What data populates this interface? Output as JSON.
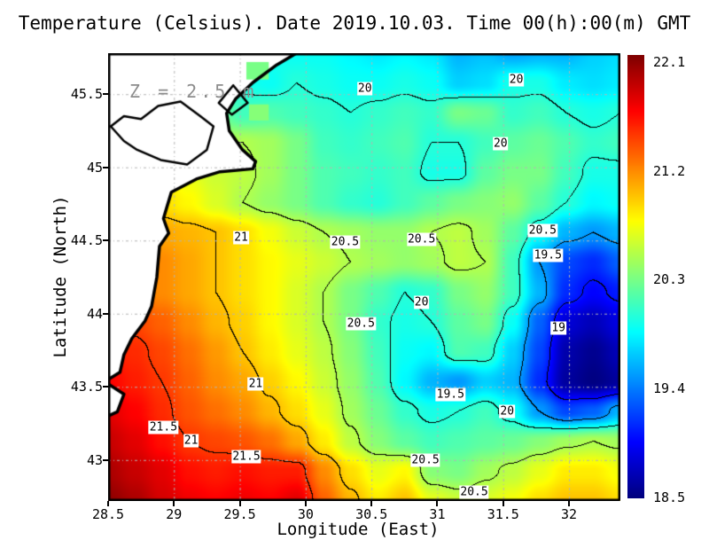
{
  "figure": {
    "title": "Temperature (Celsius). Date 2019.10.03. Time 00(h):00(m) GMT",
    "depth_annotation": "Z = 2.5 m"
  },
  "colors": {
    "grid_line": "#b4b4b4",
    "annotation": "#8c8c8c",
    "coast": "#000000",
    "frame": "#000000",
    "land": "#ffffff",
    "contour_line": "#000000"
  },
  "chart_data": {
    "type": "heatmap",
    "title": "Temperature (Celsius). Date 2019.10.03. Time 00(h):00(m) GMT",
    "xlabel": "Longitude (East)",
    "ylabel": "Latitude (North)",
    "units": "Celsius",
    "depth_annotation": "Z = 2.5 m",
    "colormap": "jet",
    "grid_on": true,
    "xlim": [
      28.5,
      32.39
    ],
    "ylim": [
      42.72,
      45.78
    ],
    "x_tick_values": [
      28.5,
      29,
      29.5,
      30,
      30.5,
      31,
      31.5,
      32
    ],
    "x_tick_labels": [
      "28.5",
      "29",
      "29.5",
      "30",
      "30.5",
      "31",
      "31.5",
      "32"
    ],
    "y_tick_values": [
      43,
      43.5,
      44,
      44.5,
      45,
      45.5
    ],
    "y_tick_labels": [
      "43",
      "43.5",
      "44",
      "44.5",
      "45",
      "45.5"
    ],
    "contour_levels": [
      19,
      19.5,
      20,
      20.5,
      21,
      21.5
    ],
    "colorbar": {
      "min": 18.5,
      "max": 22.1,
      "label_values": [
        22.1,
        21.2,
        20.3,
        19.4,
        18.5
      ],
      "labels": [
        "22.1",
        "21.2",
        "20.3",
        "19.4",
        "18.5"
      ]
    },
    "temperature_grid": {
      "lon_start": 28.5,
      "lon_end": 32.39,
      "lat_start": 45.78,
      "lat_end": 42.72,
      "nx": 20,
      "ny": 16,
      "values": [
        [
          20.0,
          20.0,
          20.0,
          20.0,
          20.0,
          20.0,
          19.95,
          19.9,
          19.9,
          19.85,
          19.8,
          19.85,
          19.8,
          19.6,
          19.65,
          19.55,
          19.6,
          19.6,
          19.7,
          19.75
        ],
        [
          20.0,
          20.0,
          20.0,
          20.0,
          20.0,
          19.95,
          19.9,
          20.0,
          19.95,
          19.9,
          19.9,
          19.95,
          19.9,
          19.7,
          19.75,
          19.95,
          19.95,
          19.8,
          19.75,
          19.8
        ],
        [
          20.2,
          20.2,
          20.2,
          20.25,
          20.3,
          20.1,
          20.15,
          20.1,
          20.05,
          20.0,
          20.05,
          20.1,
          20.05,
          20.3,
          20.25,
          20.05,
          20.1,
          20.0,
          19.95,
          20.0
        ],
        [
          20.6,
          20.6,
          20.6,
          20.55,
          20.5,
          20.5,
          20.45,
          20.3,
          20.1,
          20.05,
          20.1,
          20.15,
          20.0,
          20.0,
          20.1,
          20.2,
          20.25,
          20.15,
          20.05,
          20.1
        ],
        [
          20.8,
          20.8,
          20.8,
          20.7,
          20.6,
          20.55,
          20.45,
          20.3,
          20.15,
          20.1,
          20.05,
          20.1,
          19.95,
          19.95,
          20.2,
          20.3,
          20.3,
          20.1,
          19.95,
          19.95
        ],
        [
          21.0,
          20.95,
          20.9,
          20.8,
          20.65,
          20.5,
          20.4,
          20.3,
          20.15,
          20.05,
          20.0,
          20.1,
          20.2,
          20.3,
          20.35,
          20.4,
          20.2,
          20.0,
          19.85,
          19.9
        ],
        [
          21.2,
          21.15,
          21.1,
          21.05,
          21.0,
          20.9,
          20.75,
          20.6,
          20.5,
          20.45,
          20.4,
          20.4,
          20.5,
          20.55,
          20.45,
          20.2,
          19.9,
          19.6,
          19.5,
          19.6
        ],
        [
          21.3,
          21.25,
          21.2,
          21.1,
          21.0,
          20.9,
          20.8,
          20.7,
          20.6,
          20.5,
          20.45,
          20.4,
          20.45,
          20.55,
          20.5,
          20.1,
          19.5,
          19.2,
          19.1,
          19.3
        ],
        [
          21.35,
          21.3,
          21.2,
          21.1,
          21.0,
          20.9,
          20.8,
          20.65,
          20.5,
          20.3,
          20.15,
          20.0,
          20.05,
          20.3,
          20.4,
          20.1,
          19.6,
          19.1,
          18.95,
          19.05
        ],
        [
          21.5,
          21.45,
          21.35,
          21.2,
          21.05,
          20.95,
          20.8,
          20.65,
          20.5,
          20.3,
          20.05,
          19.95,
          20.0,
          20.2,
          20.3,
          19.9,
          19.3,
          18.8,
          18.7,
          18.85
        ],
        [
          21.6,
          21.55,
          21.45,
          21.3,
          21.15,
          21.0,
          20.85,
          20.7,
          20.55,
          20.35,
          20.1,
          19.9,
          19.85,
          20.15,
          20.1,
          19.7,
          19.2,
          18.65,
          18.55,
          18.7
        ],
        [
          21.7,
          21.6,
          21.5,
          21.35,
          21.2,
          21.1,
          20.95,
          20.8,
          20.6,
          20.4,
          20.15,
          19.85,
          19.6,
          19.5,
          19.7,
          19.6,
          19.1,
          18.6,
          18.5,
          18.6
        ],
        [
          21.8,
          21.7,
          21.55,
          21.4,
          21.3,
          21.2,
          21.05,
          20.9,
          20.7,
          20.45,
          20.25,
          20.05,
          19.95,
          20.0,
          20.1,
          19.9,
          19.5,
          19.2,
          19.3,
          19.6
        ],
        [
          21.9,
          21.8,
          21.65,
          21.5,
          21.45,
          21.4,
          21.3,
          21.1,
          20.85,
          20.55,
          20.35,
          20.2,
          20.1,
          20.15,
          20.2,
          20.25,
          20.35,
          20.45,
          20.5,
          20.45
        ],
        [
          22.0,
          21.9,
          21.8,
          21.65,
          21.6,
          21.65,
          21.6,
          21.6,
          21.2,
          20.9,
          20.7,
          20.8,
          20.35,
          20.3,
          20.45,
          20.55,
          20.7,
          20.85,
          20.85,
          20.75
        ],
        [
          22.1,
          22.0,
          21.85,
          21.75,
          21.7,
          21.75,
          21.7,
          21.8,
          21.35,
          21.05,
          20.85,
          21.0,
          20.7,
          20.6,
          20.65,
          20.75,
          20.9,
          21.0,
          21.0,
          20.9
        ]
      ]
    },
    "contour_labels": [
      {
        "t": "20",
        "lon": 30.45,
        "lat": 45.54
      },
      {
        "t": "20",
        "lon": 31.6,
        "lat": 45.6
      },
      {
        "t": "20",
        "lon": 31.48,
        "lat": 45.16
      },
      {
        "t": "21",
        "lon": 29.51,
        "lat": 44.52
      },
      {
        "t": "20.5",
        "lon": 30.3,
        "lat": 44.49
      },
      {
        "t": "20.5",
        "lon": 30.88,
        "lat": 44.51
      },
      {
        "t": "20.5",
        "lon": 31.8,
        "lat": 44.57
      },
      {
        "t": "19.5",
        "lon": 31.84,
        "lat": 44.4
      },
      {
        "t": "20",
        "lon": 30.88,
        "lat": 44.08
      },
      {
        "t": "20.5",
        "lon": 30.42,
        "lat": 43.93
      },
      {
        "t": "19",
        "lon": 31.92,
        "lat": 43.9
      },
      {
        "t": "19.5",
        "lon": 31.1,
        "lat": 43.45
      },
      {
        "t": "20",
        "lon": 31.53,
        "lat": 43.33
      },
      {
        "t": "21",
        "lon": 29.62,
        "lat": 43.52
      },
      {
        "t": "21.5",
        "lon": 28.92,
        "lat": 43.22
      },
      {
        "t": "21",
        "lon": 29.13,
        "lat": 43.13
      },
      {
        "t": "21.5",
        "lon": 29.55,
        "lat": 43.02
      },
      {
        "t": "20.5",
        "lon": 30.91,
        "lat": 43.0
      },
      {
        "t": "20.5",
        "lon": 31.28,
        "lat": 42.78
      }
    ],
    "land": {
      "polygons": [
        [
          [
            28.5,
            45.78
          ],
          [
            29.93,
            45.78
          ],
          [
            29.78,
            45.7
          ],
          [
            29.6,
            45.58
          ],
          [
            29.47,
            45.47
          ],
          [
            29.4,
            45.37
          ],
          [
            29.42,
            45.25
          ],
          [
            29.52,
            45.12
          ],
          [
            29.62,
            45.04
          ],
          [
            29.6,
            44.99
          ],
          [
            29.35,
            44.97
          ],
          [
            29.17,
            44.92
          ],
          [
            28.98,
            44.83
          ],
          [
            28.92,
            44.65
          ],
          [
            28.96,
            44.55
          ],
          [
            28.89,
            44.46
          ],
          [
            28.87,
            44.25
          ],
          [
            28.83,
            44.05
          ],
          [
            28.78,
            43.95
          ],
          [
            28.68,
            43.83
          ],
          [
            28.62,
            43.72
          ],
          [
            28.59,
            43.6
          ],
          [
            28.5,
            43.55
          ]
        ],
        [
          [
            28.5,
            43.52
          ],
          [
            28.62,
            43.45
          ],
          [
            28.57,
            43.33
          ],
          [
            28.5,
            43.3
          ]
        ]
      ],
      "lagoon_lines": [
        [
          [
            28.52,
            45.28
          ],
          [
            28.62,
            45.35
          ],
          [
            28.75,
            45.33
          ],
          [
            28.88,
            45.42
          ],
          [
            29.05,
            45.45
          ],
          [
            29.2,
            45.35
          ],
          [
            29.3,
            45.28
          ],
          [
            29.25,
            45.12
          ],
          [
            29.1,
            45.02
          ],
          [
            28.9,
            45.05
          ],
          [
            28.72,
            45.12
          ],
          [
            28.62,
            45.18
          ],
          [
            28.52,
            45.28
          ]
        ],
        [
          [
            29.45,
            45.56
          ],
          [
            29.56,
            45.44
          ],
          [
            29.44,
            45.36
          ],
          [
            29.34,
            45.44
          ],
          [
            29.45,
            45.56
          ]
        ]
      ],
      "coast_water_cells": [
        {
          "lon": [
            29.55,
            29.72
          ],
          "lat": [
            45.6,
            45.72
          ],
          "value": 20.3
        },
        {
          "lon": [
            29.57,
            29.72
          ],
          "lat": [
            45.32,
            45.43
          ],
          "value": 20.35
        }
      ]
    }
  }
}
